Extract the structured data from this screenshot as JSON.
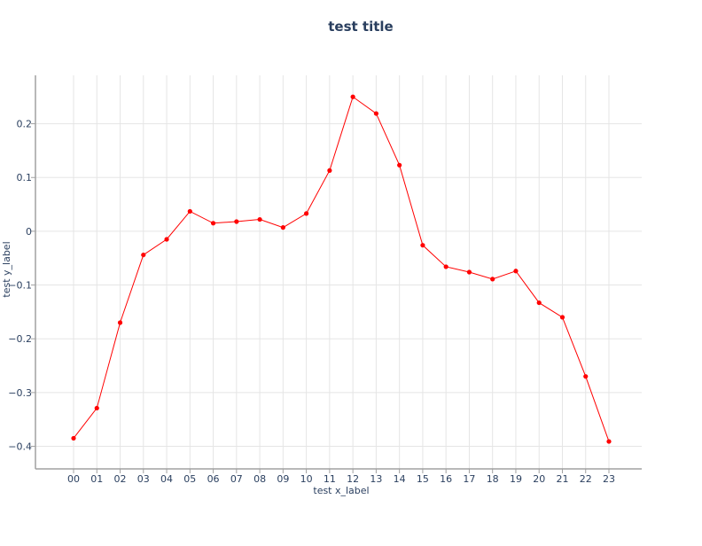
{
  "chart_data": {
    "type": "line",
    "title": "test title",
    "xlabel": "test x_label",
    "ylabel": "test y_label",
    "categories": [
      "00",
      "01",
      "02",
      "03",
      "04",
      "05",
      "06",
      "07",
      "08",
      "09",
      "10",
      "11",
      "12",
      "13",
      "14",
      "15",
      "16",
      "17",
      "18",
      "19",
      "20",
      "21",
      "22",
      "23"
    ],
    "series": [
      {
        "values": [
          -0.385,
          -0.329,
          -0.17,
          -0.044,
          -0.015,
          0.037,
          0.015,
          0.018,
          0.022,
          0.007,
          0.033,
          0.113,
          0.25,
          0.219,
          0.123,
          -0.026,
          -0.066,
          -0.076,
          -0.089,
          -0.074,
          -0.133,
          -0.16,
          -0.27,
          -0.391
        ],
        "color": "#ff0000"
      }
    ],
    "y_ticks": [
      {
        "value": 0.2,
        "label": "0.2"
      },
      {
        "value": 0.1,
        "label": "0.1"
      },
      {
        "value": 0,
        "label": "0"
      },
      {
        "value": -0.1,
        "label": "−0.1"
      },
      {
        "value": -0.2,
        "label": "−0.2"
      },
      {
        "value": -0.3,
        "label": "−0.3"
      },
      {
        "value": -0.4,
        "label": "−0.4"
      }
    ],
    "ylim": [
      -0.442,
      0.29
    ],
    "grid": true,
    "legend": "none"
  },
  "colors": {
    "line": "#ff0000",
    "text": "#2a3f5f",
    "grid": "#e5e5e5",
    "axis": "#a0a0a0"
  }
}
